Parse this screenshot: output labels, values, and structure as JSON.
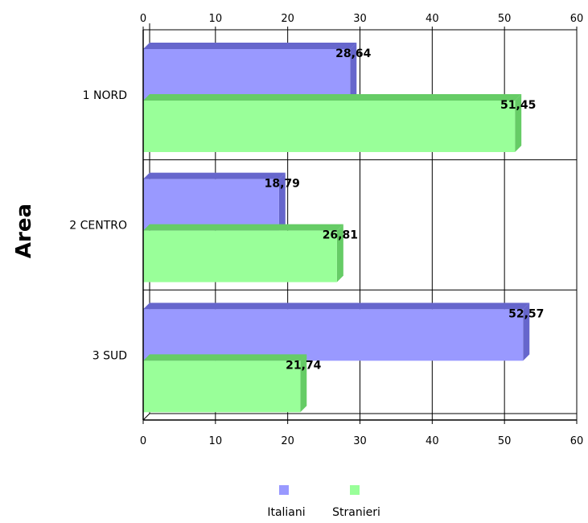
{
  "chart_data": {
    "type": "bar",
    "orientation": "horizontal",
    "style": "3d",
    "categories": [
      "1 NORD",
      "2 CENTRO",
      "3 SUD"
    ],
    "series": [
      {
        "name": "Italiani",
        "values": [
          28.64,
          18.79,
          52.57
        ],
        "labels": [
          "28,64",
          "18,79",
          "52,57"
        ],
        "color": "#9999ff",
        "side_color": "#6666cc"
      },
      {
        "name": "Stranieri",
        "values": [
          51.45,
          26.81,
          21.74
        ],
        "labels": [
          "51,45",
          "26,81",
          "21,74"
        ],
        "color": "#99ff99",
        "side_color": "#66cc66"
      }
    ],
    "title": "",
    "xlabel": "",
    "ylabel": "Area",
    "xlim": [
      0,
      60
    ],
    "xticks": [
      0,
      10,
      20,
      30,
      40,
      50,
      60
    ],
    "grid": true,
    "legend_position": "bottom"
  }
}
